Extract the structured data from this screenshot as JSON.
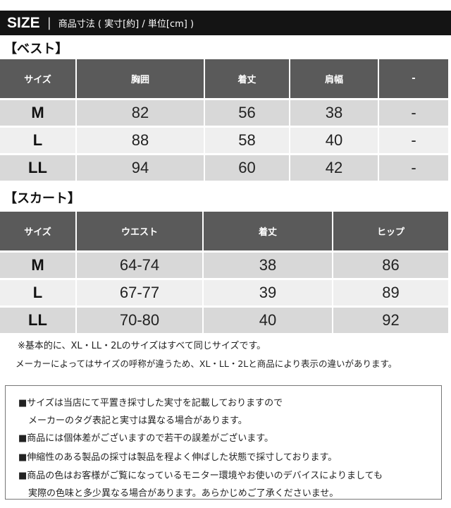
{
  "header": {
    "size_label": "SIZE",
    "separator": "|",
    "subtitle": "商品寸法 ( 実寸[約] / 単位[cm] )"
  },
  "vest": {
    "title": "【ベスト】",
    "headers": [
      "サイズ",
      "胸囲",
      "着丈",
      "肩幅",
      "-"
    ],
    "rows": [
      [
        "M",
        "82",
        "56",
        "38",
        "-"
      ],
      [
        "L",
        "88",
        "58",
        "40",
        "-"
      ],
      [
        "LL",
        "94",
        "60",
        "42",
        "-"
      ]
    ]
  },
  "skirt": {
    "title": "【スカート】",
    "headers": [
      "サイズ",
      "ウエスト",
      "着丈",
      "ヒップ"
    ],
    "rows": [
      [
        "M",
        "64-74",
        "38",
        "86"
      ],
      [
        "L",
        "67-77",
        "39",
        "89"
      ],
      [
        "LL",
        "70-80",
        "40",
        "92"
      ]
    ]
  },
  "notes": [
    "※基本的に、XL・LL・2Lのサイズはすべて同じサイズです。",
    "メーカーによってはサイズの呼称が違うため、XL・LL・2Lと商品により表示の違いがあります。"
  ],
  "box_lines": [
    "■サイズは当店にて平置き採寸した実寸を記載しておりますので",
    "メーカーのタグ表記と実寸は異なる場合があります。",
    "■商品には個体差がございますので若干の誤差がございます。",
    "■伸縮性のある製品の採寸は製品を程よく伸ばした状態で採寸しております。",
    "■商品の色はお客様がご覧になっているモニター環境やお使いのデバイスによりましても",
    "実際の色味と多少異なる場合があります。あらかじめご了承くださいませ。"
  ]
}
